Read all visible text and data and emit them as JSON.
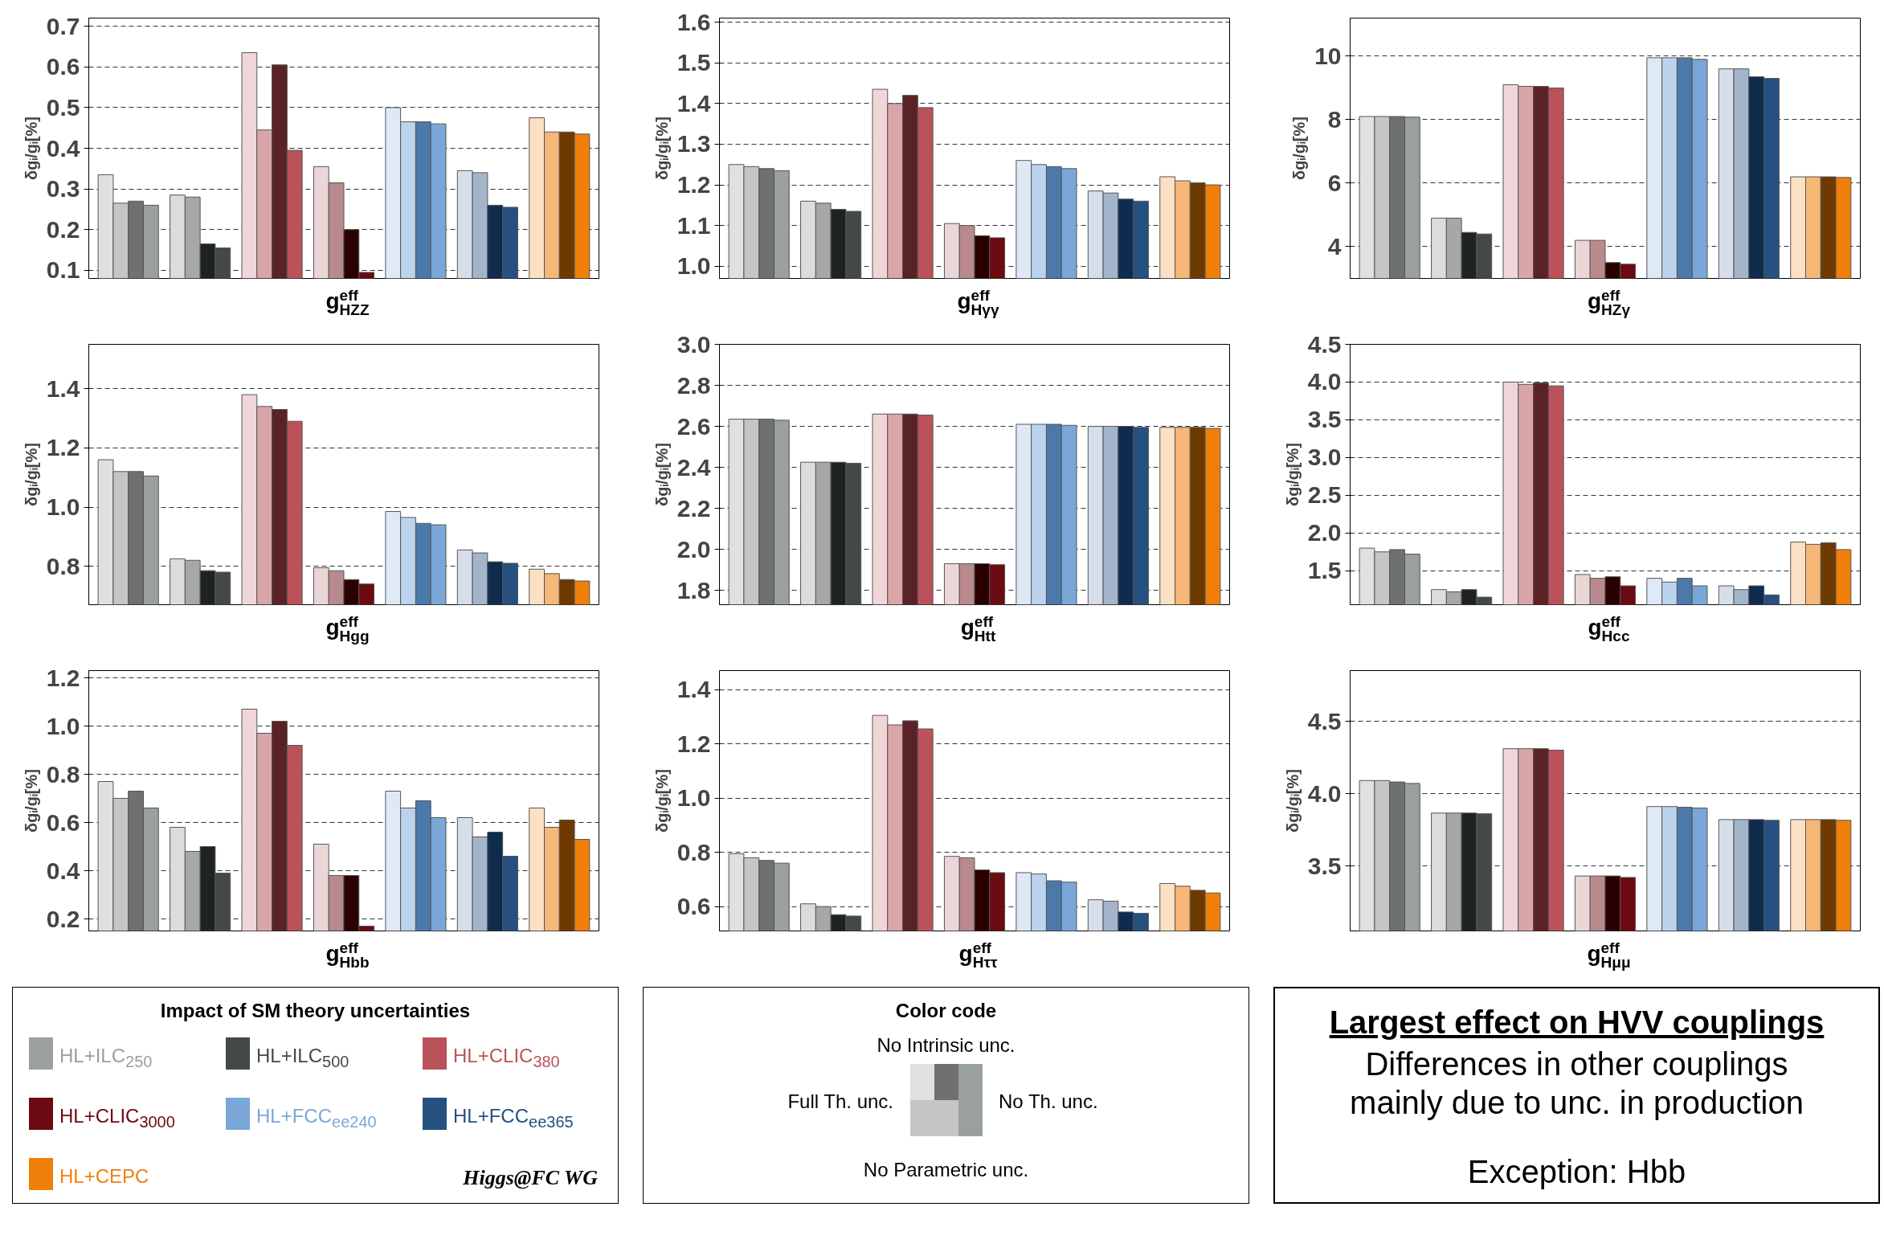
{
  "chart_data": [
    {
      "type": "bar",
      "xlabel": "g$^{eff}$$_{HZZ}$",
      "ylabel": "δgᵢ/gᵢ[%]",
      "categories": [
        null,
        null,
        null,
        null,
        null,
        null,
        null
      ],
      "ylim": [
        0.08,
        0.72
      ],
      "yticks": [
        0.1,
        0.2,
        0.3,
        0.4,
        0.5,
        0.6,
        0.7
      ],
      "grid": "y",
      "series": [
        {
          "colors": [
            "#e0e0e0",
            "#dcdcdc",
            "#f0d6d8",
            "#ead6d7",
            "#dfe9f5",
            "#d6dfe9",
            "#fbe0c4"
          ],
          "values": [
            0.335,
            0.285,
            0.635,
            0.355,
            0.5,
            0.345,
            0.475
          ]
        },
        {
          "colors": [
            "#c4c6c5",
            "#a6a8a7",
            "#d9a5a9",
            "#b98a8d",
            "#bcd3ed",
            "#a3b5ca",
            "#f6b777"
          ],
          "values": [
            0.265,
            0.28,
            0.445,
            0.315,
            0.465,
            0.34,
            0.44
          ]
        },
        {
          "colors": [
            "#6e716f",
            "#1e2220",
            "#5b2226",
            "#2a0002",
            "#4c79aa",
            "#0f2c4f",
            "#6e3a00"
          ],
          "values": [
            0.27,
            0.165,
            0.605,
            0.2,
            0.465,
            0.26,
            0.44
          ]
        },
        {
          "colors": [
            "#9aa09b",
            "#434a46",
            "#bb525a",
            "#6b0a10",
            "#7aa7d8",
            "#25507f",
            "#f07f0a"
          ],
          "values": [
            0.26,
            0.155,
            0.395,
            0.095,
            0.46,
            0.255,
            0.435
          ]
        }
      ]
    },
    {
      "type": "bar",
      "xlabel": "g$^{eff}$$_{Hγγ}$",
      "ylabel": "δgᵢ/gᵢ[%]",
      "categories": [
        null,
        null,
        null,
        null,
        null,
        null,
        null
      ],
      "ylim": [
        0.97,
        1.61
      ],
      "yticks": [
        {
          "value": 1,
          "label": "1.0"
        },
        1.1,
        1.2,
        1.3,
        1.4,
        1.5,
        1.6
      ],
      "grid": "y",
      "series": [
        {
          "colors": [
            "#e0e0e0",
            "#dcdcdc",
            "#f0d6d8",
            "#ead6d7",
            "#dfe9f5",
            "#d6dfe9",
            "#fbe0c4"
          ],
          "values": [
            1.25,
            1.16,
            1.435,
            1.105,
            1.26,
            1.185,
            1.22
          ]
        },
        {
          "colors": [
            "#c4c6c5",
            "#a6a8a7",
            "#d9a5a9",
            "#b98a8d",
            "#bcd3ed",
            "#a3b5ca",
            "#f6b777"
          ],
          "values": [
            1.245,
            1.155,
            1.4,
            1.1,
            1.25,
            1.18,
            1.21
          ]
        },
        {
          "colors": [
            "#6e716f",
            "#1e2220",
            "#5b2226",
            "#2a0002",
            "#4c79aa",
            "#0f2c4f",
            "#6e3a00"
          ],
          "values": [
            1.24,
            1.14,
            1.42,
            1.075,
            1.245,
            1.165,
            1.205
          ]
        },
        {
          "colors": [
            "#9aa09b",
            "#434a46",
            "#bb525a",
            "#6b0a10",
            "#7aa7d8",
            "#25507f",
            "#f07f0a"
          ],
          "values": [
            1.235,
            1.135,
            1.39,
            1.07,
            1.24,
            1.16,
            1.2
          ]
        }
      ]
    },
    {
      "type": "bar",
      "xlabel": "g$^{eff}$$_{HZγ}$",
      "ylabel": "δgᵢ/gᵢ[%]",
      "categories": [
        null,
        null,
        null,
        null,
        null,
        null,
        null
      ],
      "ylim": [
        3.0,
        11.2
      ],
      "yticks": [
        4,
        6,
        8,
        10
      ],
      "grid": "y",
      "series": [
        {
          "colors": [
            "#e0e0e0",
            "#dcdcdc",
            "#f0d6d8",
            "#ead6d7",
            "#dfe9f5",
            "#d6dfe9",
            "#fbe0c4"
          ],
          "values": [
            8.1,
            4.9,
            9.1,
            4.2,
            9.95,
            9.6,
            6.2
          ]
        },
        {
          "colors": [
            "#c4c6c5",
            "#a6a8a7",
            "#d9a5a9",
            "#b98a8d",
            "#bcd3ed",
            "#a3b5ca",
            "#f6b777"
          ],
          "values": [
            8.1,
            4.9,
            9.05,
            4.2,
            9.95,
            9.6,
            6.2
          ]
        },
        {
          "colors": [
            "#6e716f",
            "#1e2220",
            "#5b2226",
            "#2a0002",
            "#4c79aa",
            "#0f2c4f",
            "#6e3a00"
          ],
          "values": [
            8.1,
            4.45,
            9.05,
            3.5,
            9.95,
            9.35,
            6.2
          ]
        },
        {
          "colors": [
            "#9aa09b",
            "#434a46",
            "#bb525a",
            "#6b0a10",
            "#7aa7d8",
            "#25507f",
            "#f07f0a"
          ],
          "values": [
            8.08,
            4.4,
            9.0,
            3.45,
            9.9,
            9.3,
            6.18
          ]
        }
      ]
    },
    {
      "type": "bar",
      "xlabel": "g$^{eff}$$_{Hgg}$",
      "ylabel": "δgᵢ/gᵢ[%]",
      "categories": [
        null,
        null,
        null,
        null,
        null,
        null,
        null
      ],
      "ylim": [
        0.67,
        1.55
      ],
      "yticks": [
        0.8,
        {
          "value": 1,
          "label": "1.0"
        },
        1.2,
        1.4
      ],
      "grid": "y",
      "series": [
        {
          "colors": [
            "#e0e0e0",
            "#dcdcdc",
            "#f0d6d8",
            "#ead6d7",
            "#dfe9f5",
            "#d6dfe9",
            "#fbe0c4"
          ],
          "values": [
            1.16,
            0.825,
            1.38,
            0.795,
            0.985,
            0.855,
            0.79
          ]
        },
        {
          "colors": [
            "#c4c6c5",
            "#a6a8a7",
            "#d9a5a9",
            "#b98a8d",
            "#bcd3ed",
            "#a3b5ca",
            "#f6b777"
          ],
          "values": [
            1.12,
            0.82,
            1.34,
            0.785,
            0.965,
            0.845,
            0.775
          ]
        },
        {
          "colors": [
            "#6e716f",
            "#1e2220",
            "#5b2226",
            "#2a0002",
            "#4c79aa",
            "#0f2c4f",
            "#6e3a00"
          ],
          "values": [
            1.12,
            0.785,
            1.33,
            0.755,
            0.945,
            0.815,
            0.755
          ]
        },
        {
          "colors": [
            "#9aa09b",
            "#434a46",
            "#bb525a",
            "#6b0a10",
            "#7aa7d8",
            "#25507f",
            "#f07f0a"
          ],
          "values": [
            1.105,
            0.78,
            1.29,
            0.74,
            0.94,
            0.81,
            0.75
          ]
        }
      ]
    },
    {
      "type": "bar",
      "xlabel": "g$^{eff}$$_{Htt}$",
      "ylabel": "δgᵢ/gᵢ[%]",
      "categories": [
        null,
        null,
        null,
        null,
        null,
        null,
        null
      ],
      "ylim": [
        1.73,
        3.0
      ],
      "yticks": [
        1.8,
        {
          "value": 2,
          "label": "2.0"
        },
        2.2,
        2.4,
        2.6,
        2.8,
        {
          "value": 3,
          "label": "3.0"
        }
      ],
      "grid": "y",
      "series": [
        {
          "colors": [
            "#e0e0e0",
            "#dcdcdc",
            "#f0d6d8",
            "#ead6d7",
            "#dfe9f5",
            "#d6dfe9",
            "#fbe0c4"
          ],
          "values": [
            2.635,
            2.425,
            2.66,
            1.93,
            2.61,
            2.6,
            2.595
          ]
        },
        {
          "colors": [
            "#c4c6c5",
            "#a6a8a7",
            "#d9a5a9",
            "#b98a8d",
            "#bcd3ed",
            "#a3b5ca",
            "#f6b777"
          ],
          "values": [
            2.635,
            2.425,
            2.66,
            1.93,
            2.61,
            2.6,
            2.595
          ]
        },
        {
          "colors": [
            "#6e716f",
            "#1e2220",
            "#5b2226",
            "#2a0002",
            "#4c79aa",
            "#0f2c4f",
            "#6e3a00"
          ],
          "values": [
            2.635,
            2.425,
            2.66,
            1.93,
            2.61,
            2.6,
            2.595
          ]
        },
        {
          "colors": [
            "#9aa09b",
            "#434a46",
            "#bb525a",
            "#6b0a10",
            "#7aa7d8",
            "#25507f",
            "#f07f0a"
          ],
          "values": [
            2.63,
            2.42,
            2.655,
            1.925,
            2.605,
            2.595,
            2.59
          ]
        }
      ]
    },
    {
      "type": "bar",
      "xlabel": "g$^{eff}$$_{Hcc}$",
      "ylabel": "δgᵢ/gᵢ[%]",
      "categories": [
        null,
        null,
        null,
        null,
        null,
        null,
        null
      ],
      "ylim": [
        1.05,
        4.5
      ],
      "yticks": [
        1.5,
        {
          "value": 2,
          "label": "2.0"
        },
        2.5,
        {
          "value": 3,
          "label": "3.0"
        },
        3.5,
        {
          "value": 4,
          "label": "4.0"
        },
        4.5
      ],
      "grid": "y",
      "series": [
        {
          "colors": [
            "#e0e0e0",
            "#dcdcdc",
            "#f0d6d8",
            "#ead6d7",
            "#dfe9f5",
            "#d6dfe9",
            "#fbe0c4"
          ],
          "values": [
            1.8,
            1.25,
            4.0,
            1.45,
            1.4,
            1.3,
            1.88
          ]
        },
        {
          "colors": [
            "#c4c6c5",
            "#a6a8a7",
            "#d9a5a9",
            "#b98a8d",
            "#bcd3ed",
            "#a3b5ca",
            "#f6b777"
          ],
          "values": [
            1.75,
            1.22,
            3.97,
            1.4,
            1.35,
            1.25,
            1.85
          ]
        },
        {
          "colors": [
            "#6e716f",
            "#1e2220",
            "#5b2226",
            "#2a0002",
            "#4c79aa",
            "#0f2c4f",
            "#6e3a00"
          ],
          "values": [
            1.78,
            1.25,
            3.99,
            1.42,
            1.4,
            1.3,
            1.87
          ]
        },
        {
          "colors": [
            "#9aa09b",
            "#434a46",
            "#bb525a",
            "#6b0a10",
            "#7aa7d8",
            "#25507f",
            "#f07f0a"
          ],
          "values": [
            1.72,
            1.15,
            3.95,
            1.3,
            1.3,
            1.18,
            1.78
          ]
        }
      ]
    },
    {
      "type": "bar",
      "xlabel": "g$^{eff}$$_{Hbb}$",
      "ylabel": "δgᵢ/gᵢ[%]",
      "categories": [
        null,
        null,
        null,
        null,
        null,
        null,
        null
      ],
      "ylim": [
        0.15,
        1.23
      ],
      "yticks": [
        0.2,
        0.4,
        0.6,
        0.8,
        {
          "value": 1,
          "label": "1.0"
        },
        1.2
      ],
      "grid": "y",
      "series": [
        {
          "colors": [
            "#e0e0e0",
            "#dcdcdc",
            "#f0d6d8",
            "#ead6d7",
            "#dfe9f5",
            "#d6dfe9",
            "#fbe0c4"
          ],
          "values": [
            0.77,
            0.58,
            1.07,
            0.51,
            0.73,
            0.62,
            0.66
          ]
        },
        {
          "colors": [
            "#c4c6c5",
            "#a6a8a7",
            "#d9a5a9",
            "#b98a8d",
            "#bcd3ed",
            "#a3b5ca",
            "#f6b777"
          ],
          "values": [
            0.7,
            0.48,
            0.97,
            0.38,
            0.66,
            0.54,
            0.58
          ]
        },
        {
          "colors": [
            "#6e716f",
            "#1e2220",
            "#5b2226",
            "#2a0002",
            "#4c79aa",
            "#0f2c4f",
            "#6e3a00"
          ],
          "values": [
            0.73,
            0.5,
            1.02,
            0.38,
            0.69,
            0.56,
            0.61
          ]
        },
        {
          "colors": [
            "#9aa09b",
            "#434a46",
            "#bb525a",
            "#6b0a10",
            "#7aa7d8",
            "#25507f",
            "#f07f0a"
          ],
          "values": [
            0.66,
            0.39,
            0.92,
            0.17,
            0.62,
            0.46,
            0.53
          ]
        }
      ]
    },
    {
      "type": "bar",
      "xlabel": "g$^{eff}$$_{Hττ}$",
      "ylabel": "δgᵢ/gᵢ[%]",
      "categories": [
        null,
        null,
        null,
        null,
        null,
        null,
        null
      ],
      "ylim": [
        0.51,
        1.47
      ],
      "yticks": [
        0.6,
        0.8,
        {
          "value": 1,
          "label": "1.0"
        },
        1.2,
        1.4
      ],
      "grid": "y",
      "series": [
        {
          "colors": [
            "#e0e0e0",
            "#dcdcdc",
            "#f0d6d8",
            "#ead6d7",
            "#dfe9f5",
            "#d6dfe9",
            "#fbe0c4"
          ],
          "values": [
            0.795,
            0.61,
            1.305,
            0.785,
            0.725,
            0.625,
            0.685
          ]
        },
        {
          "colors": [
            "#c4c6c5",
            "#a6a8a7",
            "#d9a5a9",
            "#b98a8d",
            "#bcd3ed",
            "#a3b5ca",
            "#f6b777"
          ],
          "values": [
            0.78,
            0.6,
            1.27,
            0.78,
            0.72,
            0.62,
            0.675
          ]
        },
        {
          "colors": [
            "#6e716f",
            "#1e2220",
            "#5b2226",
            "#2a0002",
            "#4c79aa",
            "#0f2c4f",
            "#6e3a00"
          ],
          "values": [
            0.77,
            0.57,
            1.285,
            0.735,
            0.695,
            0.58,
            0.66
          ]
        },
        {
          "colors": [
            "#9aa09b",
            "#434a46",
            "#bb525a",
            "#6b0a10",
            "#7aa7d8",
            "#25507f",
            "#f07f0a"
          ],
          "values": [
            0.76,
            0.565,
            1.255,
            0.725,
            0.69,
            0.575,
            0.65
          ]
        }
      ]
    },
    {
      "type": "bar",
      "xlabel": "g$^{eff}$$_{Hμμ}$",
      "ylabel": "δgᵢ/gᵢ[%]",
      "categories": [
        null,
        null,
        null,
        null,
        null,
        null,
        null
      ],
      "ylim": [
        3.05,
        4.85
      ],
      "yticks": [
        3.5,
        {
          "value": 4,
          "label": "4.0"
        },
        4.5
      ],
      "grid": "y",
      "series": [
        {
          "colors": [
            "#e0e0e0",
            "#dcdcdc",
            "#f0d6d8",
            "#ead6d7",
            "#dfe9f5",
            "#d6dfe9",
            "#fbe0c4"
          ],
          "values": [
            4.09,
            3.865,
            4.31,
            3.43,
            3.91,
            3.82,
            3.82
          ]
        },
        {
          "colors": [
            "#c4c6c5",
            "#a6a8a7",
            "#d9a5a9",
            "#b98a8d",
            "#bcd3ed",
            "#a3b5ca",
            "#f6b777"
          ],
          "values": [
            4.09,
            3.865,
            4.31,
            3.43,
            3.91,
            3.82,
            3.82
          ]
        },
        {
          "colors": [
            "#6e716f",
            "#1e2220",
            "#5b2226",
            "#2a0002",
            "#4c79aa",
            "#0f2c4f",
            "#6e3a00"
          ],
          "values": [
            4.08,
            3.865,
            4.31,
            3.43,
            3.905,
            3.82,
            3.82
          ]
        },
        {
          "colors": [
            "#9aa09b",
            "#434a46",
            "#bb525a",
            "#6b0a10",
            "#7aa7d8",
            "#25507f",
            "#f07f0a"
          ],
          "values": [
            4.07,
            3.86,
            4.3,
            3.42,
            3.9,
            3.815,
            3.815
          ]
        }
      ]
    },
    {
      "type": "other",
      "title": "Impact of SM theory uncertainties",
      "categories": [
        "HL+ILC$_{250}$",
        "HL+ILC$_{500}$",
        "HL+CLIC$_{380}$",
        "HL+CLIC$_{3000}$",
        "HL+FCC$_{ee240}$",
        "HL+FCC$_{ee365}$",
        "HL+CEPC"
      ],
      "colors": [
        "#9aa09b",
        "#434a46",
        "#bb525a",
        "#6b0a10",
        "#7aa7d8",
        "#25507f",
        "#f07f0a"
      ],
      "annotations": [
        "Higgs@FC WG"
      ]
    },
    {
      "type": "other",
      "title": "Color code",
      "categories": [
        "Full Th. unc.",
        "No Parametric unc.",
        "No Intrinsic unc.",
        "No Th. unc."
      ]
    },
    {
      "type": "other",
      "title": "Largest effect on HVV couplings",
      "annotations": [
        "Differences in other couplings",
        "mainly due to unc. in production",
        "Exception: Hbb"
      ]
    }
  ]
}
